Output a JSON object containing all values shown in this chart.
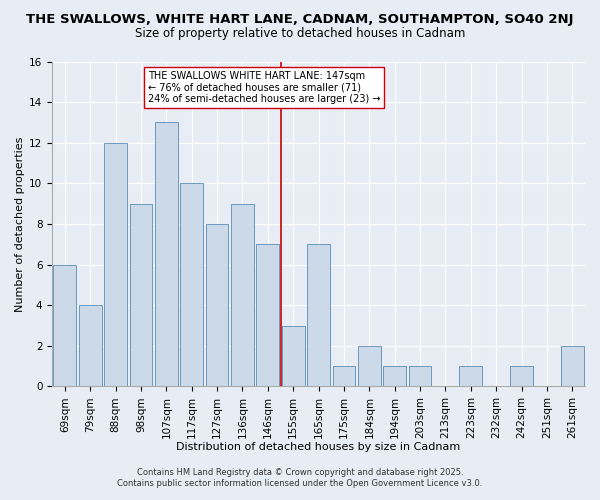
{
  "title": "THE SWALLOWS, WHITE HART LANE, CADNAM, SOUTHAMPTON, SO40 2NJ",
  "subtitle": "Size of property relative to detached houses in Cadnam",
  "xlabel": "Distribution of detached houses by size in Cadnam",
  "ylabel": "Number of detached properties",
  "categories": [
    "69sqm",
    "79sqm",
    "88sqm",
    "98sqm",
    "107sqm",
    "117sqm",
    "127sqm",
    "136sqm",
    "146sqm",
    "155sqm",
    "165sqm",
    "175sqm",
    "184sqm",
    "194sqm",
    "203sqm",
    "213sqm",
    "223sqm",
    "232sqm",
    "242sqm",
    "251sqm",
    "261sqm"
  ],
  "values": [
    6,
    4,
    12,
    9,
    13,
    10,
    8,
    9,
    7,
    3,
    7,
    1,
    2,
    1,
    1,
    0,
    1,
    0,
    1,
    0,
    2
  ],
  "bar_color": "#ccd9e8",
  "bar_edge_color": "#5b8db8",
  "vline_x": 8.5,
  "vline_color": "#cc0000",
  "annotation_line1": "THE SWALLOWS WHITE HART LANE: 147sqm",
  "annotation_line2": "← 76% of detached houses are smaller (71)",
  "annotation_line3": "24% of semi-detached houses are larger (23) →",
  "annotation_box_color": "#ffffff",
  "annotation_box_edge": "#cc0000",
  "ylim": [
    0,
    16
  ],
  "yticks": [
    0,
    2,
    4,
    6,
    8,
    10,
    12,
    14,
    16
  ],
  "footer_line1": "Contains HM Land Registry data © Crown copyright and database right 2025.",
  "footer_line2": "Contains public sector information licensed under the Open Government Licence v3.0.",
  "bg_color": "#e8edf5",
  "plot_bg_color": "#e8edf5",
  "grid_color": "#ffffff",
  "title_fontsize": 9.5,
  "subtitle_fontsize": 8.5,
  "axis_label_fontsize": 8,
  "tick_fontsize": 7.5,
  "annotation_fontsize": 7,
  "footer_fontsize": 6
}
